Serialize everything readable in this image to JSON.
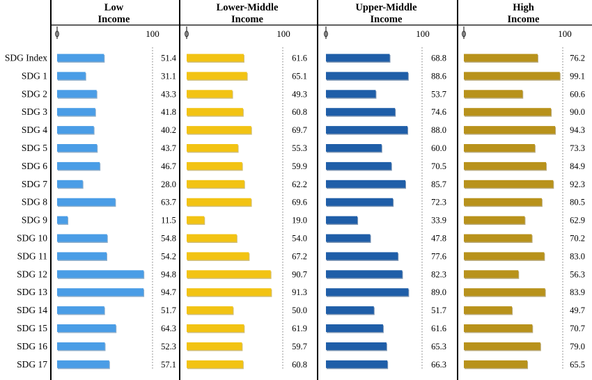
{
  "chart_data": {
    "type": "bar",
    "orientation": "horizontal",
    "categories": [
      "SDG Index",
      "SDG 1",
      "SDG 2",
      "SDG 3",
      "SDG 4",
      "SDG 5",
      "SDG 6",
      "SDG 7",
      "SDG 8",
      "SDG 9",
      "SDG 10",
      "SDG 11",
      "SDG 12",
      "SDG 13",
      "SDG 14",
      "SDG 15",
      "SDG 16",
      "SDG 17"
    ],
    "xlim": [
      0,
      100
    ],
    "ticks": [
      "0",
      "100"
    ],
    "series": [
      {
        "name": "Low Income",
        "title_lines": [
          "Low",
          "Income"
        ],
        "color": "#4a9de6",
        "values": [
          51.4,
          31.1,
          43.3,
          41.8,
          40.2,
          43.7,
          46.7,
          28.0,
          63.7,
          11.5,
          54.8,
          54.2,
          94.8,
          94.7,
          51.7,
          64.3,
          52.3,
          57.1
        ],
        "labels": [
          "51.4",
          "31.1",
          "43.3",
          "41.8",
          "40.2",
          "43.7",
          "46.7",
          "28.0",
          "63.7",
          "11.5",
          "54.8",
          "54.2",
          "94.8",
          "94.7",
          "51.7",
          "64.3",
          "52.3",
          "57.1"
        ]
      },
      {
        "name": "Lower-Middle Income",
        "title_lines": [
          "Lower-Middle",
          "Income"
        ],
        "color": "#f2c313",
        "values": [
          61.6,
          65.1,
          49.3,
          60.8,
          69.7,
          55.3,
          59.9,
          62.2,
          69.6,
          19.0,
          54.0,
          67.2,
          90.7,
          91.3,
          50.0,
          61.9,
          59.7,
          60.8
        ],
        "labels": [
          "61.6",
          "65.1",
          "49.3",
          "60.8",
          "69.7",
          "55.3",
          "59.9",
          "62.2",
          "69.6",
          "19.0",
          "54.0",
          "67.2",
          "90.7",
          "91.3",
          "50.0",
          "61.9",
          "59.7",
          "60.8"
        ]
      },
      {
        "name": "Upper-Middle Income",
        "title_lines": [
          "Upper-Middle",
          "Income"
        ],
        "color": "#1f5ea8",
        "values": [
          68.8,
          88.6,
          53.7,
          74.6,
          88.0,
          60.0,
          70.5,
          85.7,
          72.3,
          33.9,
          47.8,
          77.6,
          82.3,
          89.0,
          51.7,
          61.6,
          65.3,
          66.3
        ],
        "labels": [
          "68.8",
          "88.6",
          "53.7",
          "74.6",
          "88.0",
          "60.0",
          "70.5",
          "85.7",
          "72.3",
          "33.9",
          "47.8",
          "77.6",
          "82.3",
          "89.0",
          "51.7",
          "61.6",
          "65.3",
          "66.3"
        ]
      },
      {
        "name": "High Income",
        "title_lines": [
          "High",
          "Income"
        ],
        "color": "#b8921b",
        "values": [
          76.2,
          99.1,
          60.6,
          90.0,
          94.3,
          73.3,
          84.9,
          92.3,
          80.5,
          62.9,
          70.2,
          83.0,
          56.3,
          83.9,
          49.7,
          70.7,
          79.0,
          65.5
        ],
        "labels": [
          "76.2",
          "99.1",
          "60.6",
          "90.0",
          "94.3",
          "73.3",
          "84.9",
          "92.3",
          "80.5",
          "62.9",
          "70.2",
          "83.0",
          "56.3",
          "83.9",
          "49.7",
          "70.7",
          "79.0",
          "65.5"
        ]
      }
    ],
    "grid": false,
    "legend": "none"
  }
}
